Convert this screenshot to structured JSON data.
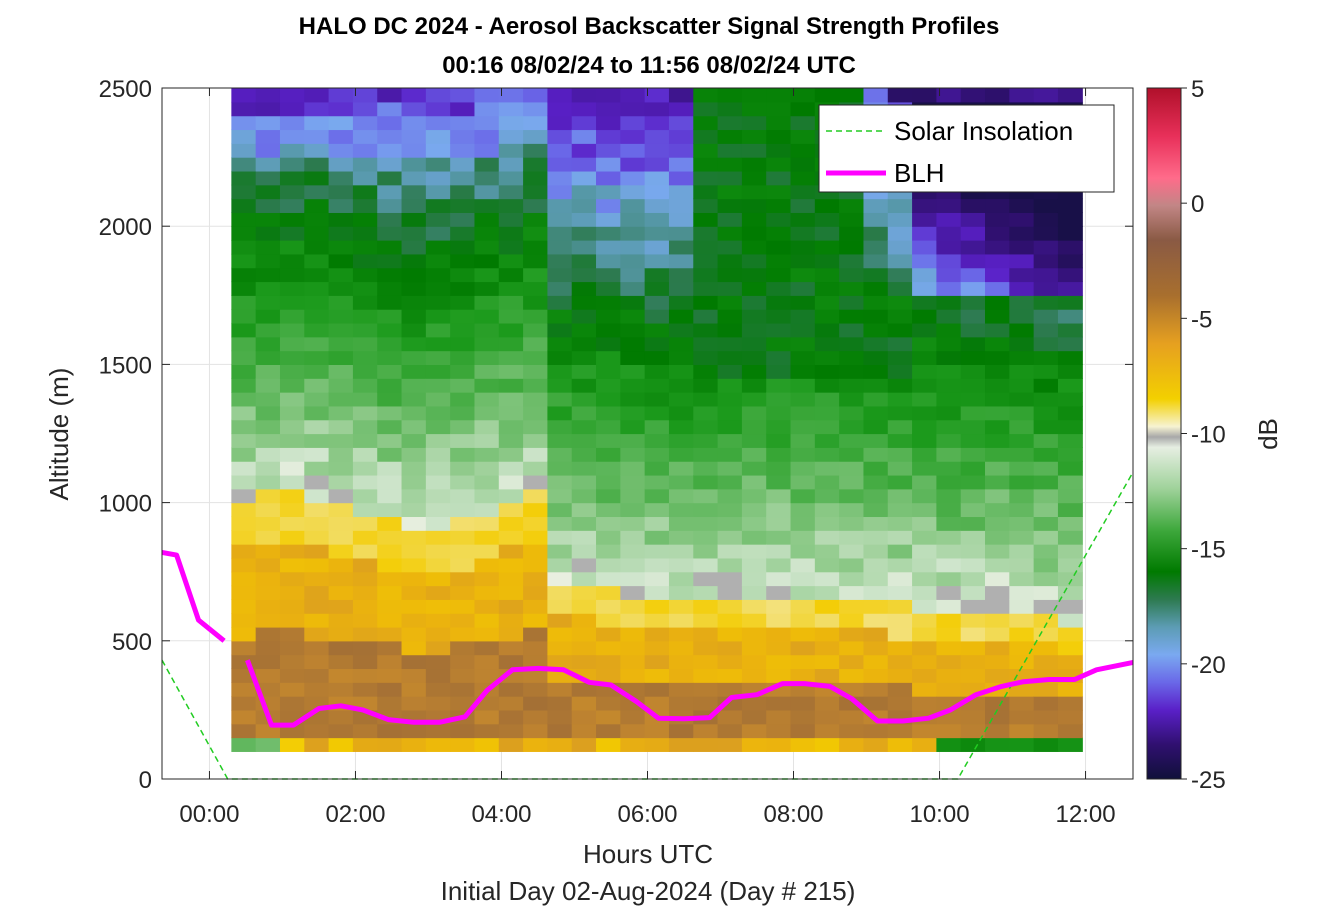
{
  "chart_data": {
    "type": "heatmap",
    "title_line1": "HALO DC 2024 - Aerosol Backscatter Signal Strength Profiles",
    "title_line2": "00:16 08/02/24 to 11:56 08/02/24  UTC",
    "xlabel": "Hours UTC",
    "xlabel2": "Initial Day 02-Aug-2024 (Day # 215)",
    "ylabel": "Altitude (m)",
    "colorbar_label": "dB",
    "xlim": [
      -0.65,
      12.65
    ],
    "ylim": [
      0,
      2500
    ],
    "x_ticks": [
      0,
      2,
      4,
      6,
      8,
      10,
      12
    ],
    "x_tick_labels": [
      "00:00",
      "02:00",
      "04:00",
      "06:00",
      "08:00",
      "10:00",
      "12:00"
    ],
    "y_ticks": [
      0,
      500,
      1000,
      1500,
      2000,
      2500
    ],
    "y_tick_labels": [
      "0",
      "500",
      "1000",
      "1500",
      "2000",
      "2500"
    ],
    "c_ticks": [
      5,
      0,
      -5,
      -10,
      -15,
      -20,
      -25
    ],
    "c_tick_labels": [
      "5",
      "0",
      "-5",
      "-10",
      "-15",
      "-20",
      "-25"
    ],
    "clim": [
      -25,
      5
    ],
    "grid": true,
    "legend_position": "top-right",
    "legend": [
      {
        "name": "Solar Insolation",
        "color": "#22cc22",
        "style": "dashed"
      },
      {
        "name": "BLH",
        "color": "#ff00ff",
        "style": "solid"
      }
    ],
    "heatmap": {
      "x_start": 0.3,
      "x_step": 0.333,
      "n_cols": 35,
      "y_start": 100,
      "y_step": 50,
      "n_rows": 48,
      "missing_color": "#b0b0b0"
    },
    "blh": [
      [
        -0.65,
        820
      ],
      [
        -0.45,
        810
      ],
      [
        -0.15,
        575
      ],
      [
        0.2,
        500
      ],
      [
        0.52,
        430
      ],
      [
        0.85,
        195
      ],
      [
        1.15,
        195
      ],
      [
        1.5,
        255
      ],
      [
        1.8,
        265
      ],
      [
        2.1,
        250
      ],
      [
        2.45,
        215
      ],
      [
        2.8,
        205
      ],
      [
        3.15,
        205
      ],
      [
        3.5,
        225
      ],
      [
        3.8,
        320
      ],
      [
        4.15,
        395
      ],
      [
        4.5,
        400
      ],
      [
        4.85,
        395
      ],
      [
        5.2,
        350
      ],
      [
        5.5,
        340
      ],
      [
        5.85,
        280
      ],
      [
        6.15,
        220
      ],
      [
        6.5,
        218
      ],
      [
        6.85,
        222
      ],
      [
        7.15,
        295
      ],
      [
        7.5,
        305
      ],
      [
        7.85,
        345
      ],
      [
        8.15,
        345
      ],
      [
        8.5,
        335
      ],
      [
        8.8,
        290
      ],
      [
        9.15,
        210
      ],
      [
        9.5,
        210
      ],
      [
        9.85,
        220
      ],
      [
        10.15,
        250
      ],
      [
        10.5,
        305
      ],
      [
        10.85,
        335
      ],
      [
        11.15,
        352
      ],
      [
        11.5,
        360
      ],
      [
        11.85,
        360
      ],
      [
        12.15,
        395
      ],
      [
        12.65,
        422
      ]
    ],
    "blh_gap": [
      0.2,
      0.52
    ],
    "solar_insolation": [
      [
        -0.65,
        430
      ],
      [
        0.25,
        0
      ],
      [
        10.25,
        0
      ],
      [
        12.65,
        1110
      ]
    ]
  }
}
